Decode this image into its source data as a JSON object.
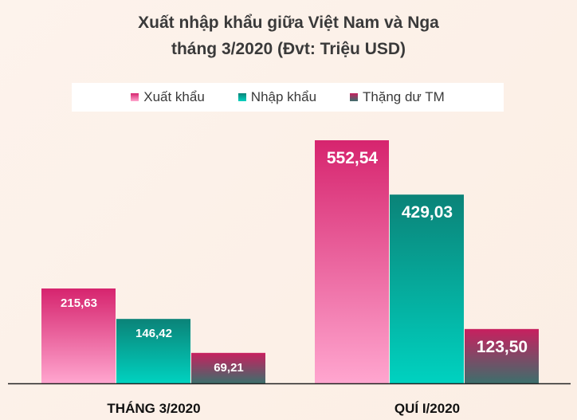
{
  "chart_data": {
    "type": "bar",
    "title": "Xuất nhập khẩu giữa Việt Nam và Nga",
    "subtitle": "tháng 3/2020 (Đvt: Triệu USD)",
    "categories": [
      "THÁNG 3/2020",
      "QUÍ I/2020"
    ],
    "series": [
      {
        "name": "Xuất khẩu",
        "values": [
          215.63,
          552.54
        ],
        "labels": [
          "215,63",
          "552,54"
        ],
        "color_top": "#d6246e",
        "color_bottom": "#ffa6cf"
      },
      {
        "name": "Nhập khẩu",
        "values": [
          146.42,
          429.03
        ],
        "labels": [
          "146,42",
          "429,03"
        ],
        "color_top": "#0b8378",
        "color_bottom": "#00d2c0"
      },
      {
        "name": "Thặng dư TM",
        "values": [
          69.21,
          123.5
        ],
        "labels": [
          "69,21",
          "123,50"
        ],
        "color_top": "#c8205f",
        "color_bottom": "#3c6f6c"
      }
    ],
    "legend_position": "top",
    "grid": false,
    "ylim": [
      0,
      552.54
    ]
  }
}
